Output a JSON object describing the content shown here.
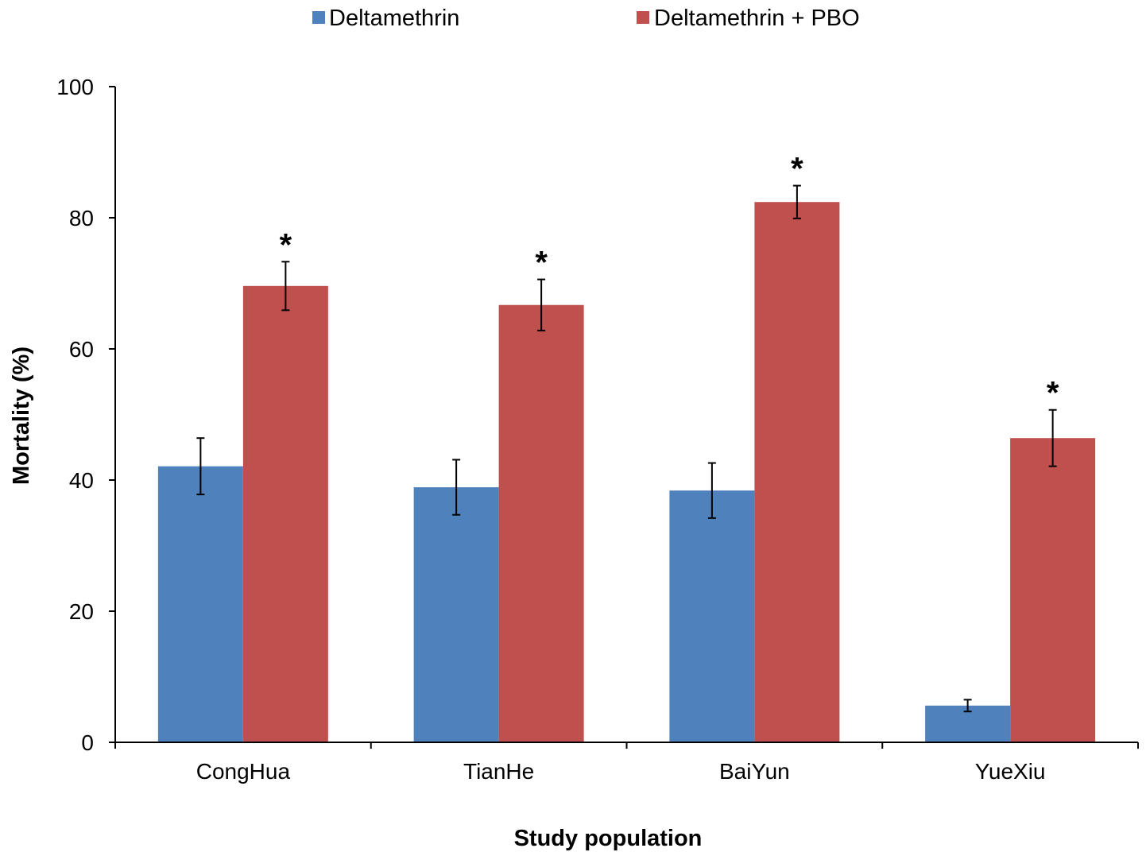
{
  "chart_data": {
    "type": "bar",
    "title": "",
    "xlabel": "Study population",
    "ylabel": "Mortality (%)",
    "ylim": [
      0,
      100
    ],
    "yticks": [
      0,
      20,
      40,
      60,
      80,
      100
    ],
    "categories": [
      "CongHua",
      "TianHe",
      "BaiYun",
      "YueXiu"
    ],
    "series": [
      {
        "name": "Deltamethrin",
        "color": "#4f81bd",
        "values": [
          42.1,
          38.9,
          38.4,
          5.6
        ],
        "error": [
          4.3,
          4.2,
          4.2,
          0.9
        ]
      },
      {
        "name": "Deltamethrin + PBO",
        "color": "#c0504d",
        "values": [
          69.6,
          66.7,
          82.4,
          46.4
        ],
        "error": [
          3.7,
          3.9,
          2.5,
          4.3
        ]
      }
    ],
    "significance_marker": "*",
    "significant": [
      true,
      true,
      true,
      true
    ],
    "legend_position": "top-center",
    "grid": false
  }
}
